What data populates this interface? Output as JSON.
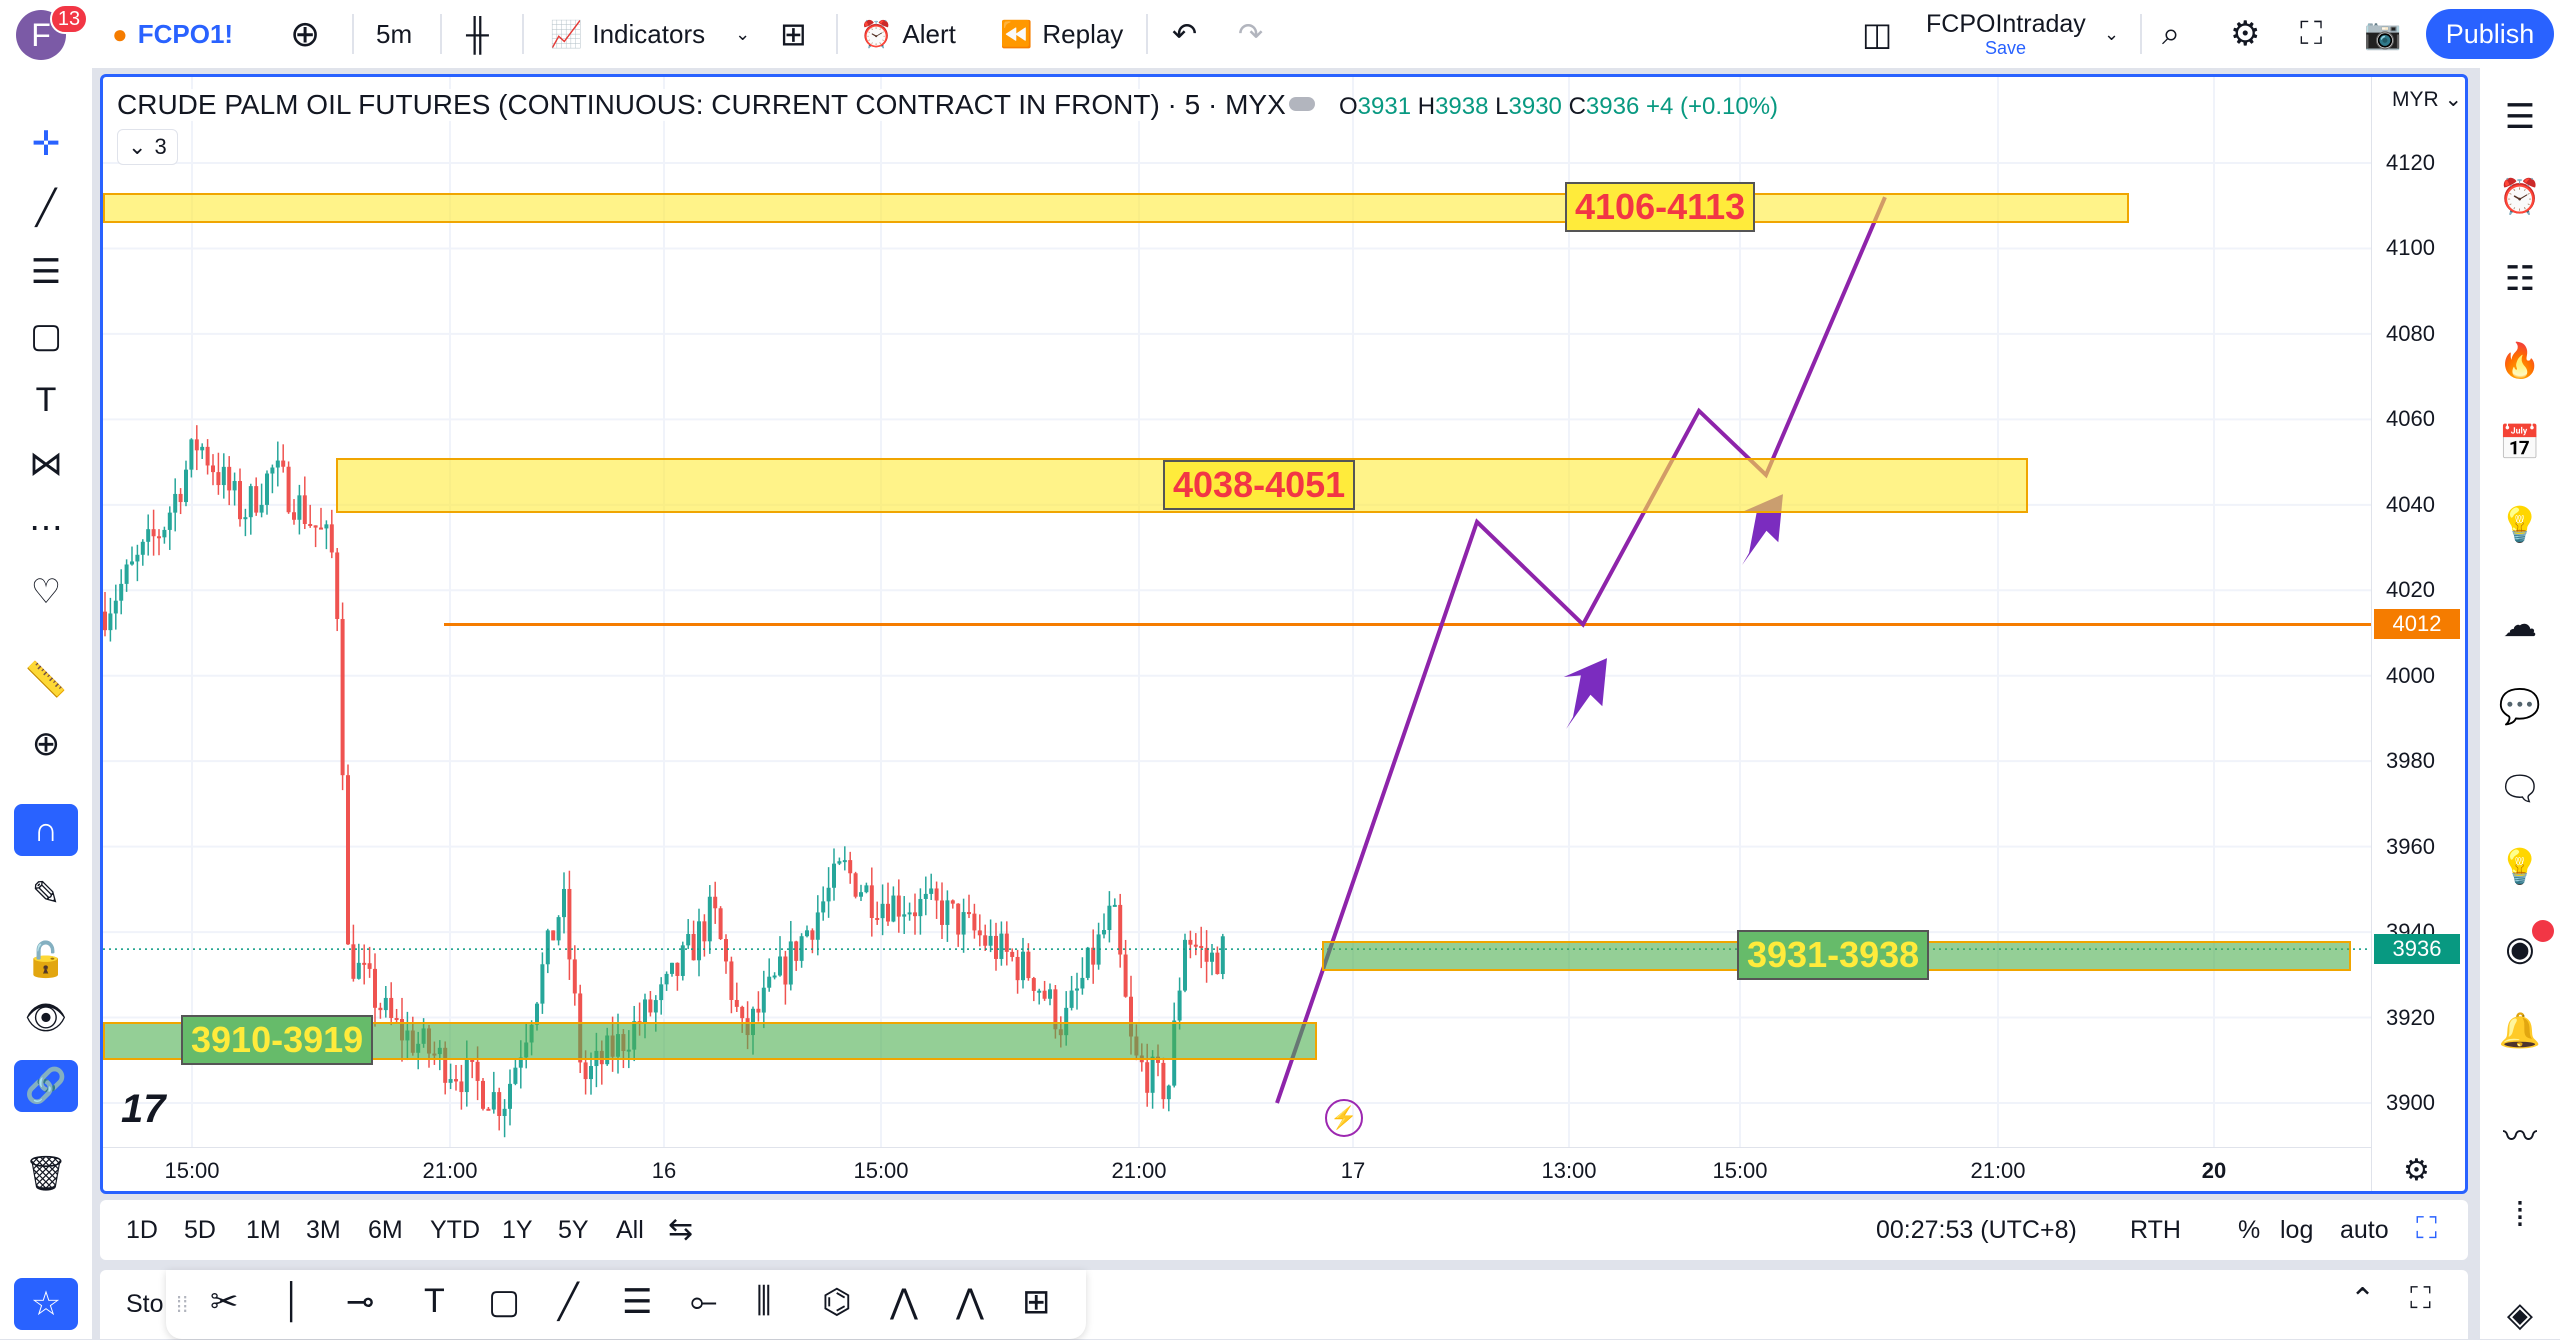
{
  "topbar": {
    "avatar_letter": "F",
    "notifications": "13",
    "symbol": "FCPO1!",
    "interval": "5m",
    "indicators": "Indicators",
    "alert": "Alert",
    "replay": "Replay",
    "layout_name": "FCPOIntraday",
    "save": "Save",
    "publish": "Publish"
  },
  "chart": {
    "title": "CRUDE PALM OIL FUTURES (CONTINUOUS: CURRENT CONTRACT IN FRONT) · 5 · MYX",
    "collapse_count": "3",
    "ohlc": {
      "o_label": "O",
      "o": "3931",
      "h_label": "H",
      "h": "3938",
      "l_label": "L",
      "l": "3930",
      "c_label": "C",
      "c": "3936",
      "change": "+4 (+0.10%)"
    },
    "currency": "MYR",
    "up_color": "#26a69a",
    "down_color": "#ef5350",
    "accent": "#2962ff",
    "price_ticks": [
      "4120",
      "4100",
      "4080",
      "4060",
      "4040",
      "4020",
      "4000",
      "3980",
      "3960",
      "3940",
      "3920",
      "3900"
    ],
    "time_ticks": [
      "15:00",
      "21:00",
      "16",
      "15:00",
      "21:00",
      "17",
      "13:00",
      "15:00",
      "21:00",
      "20"
    ],
    "price_min": 3900,
    "price_max": 4120,
    "horizontal_line": {
      "price": 4012,
      "label": "4012",
      "color": "#f57c00"
    },
    "last_price": {
      "price": 3936,
      "label": "3936",
      "color": "#089981"
    },
    "zones": [
      {
        "label": "4106-4113",
        "low": 4106,
        "high": 4113,
        "color": "#ffeb3b"
      },
      {
        "label": "4038-4051",
        "low": 4038,
        "high": 4051,
        "color": "#ffeb3b"
      },
      {
        "label": "3931-3938",
        "low": 3931,
        "high": 3938,
        "color": "#4caf50"
      },
      {
        "label": "3910-3919",
        "low": 3910,
        "high": 3919,
        "color": "#4caf50"
      }
    ],
    "projection_color": "#8e24aa"
  },
  "range_bar": {
    "ranges": [
      "1D",
      "5D",
      "1M",
      "3M",
      "6M",
      "YTD",
      "1Y",
      "5Y",
      "All"
    ],
    "clock": "00:27:53 (UTC+8)",
    "session": "RTH",
    "percent": "%",
    "log": "log",
    "auto": "auto"
  },
  "drawing_bar": {
    "label": "Sto"
  }
}
